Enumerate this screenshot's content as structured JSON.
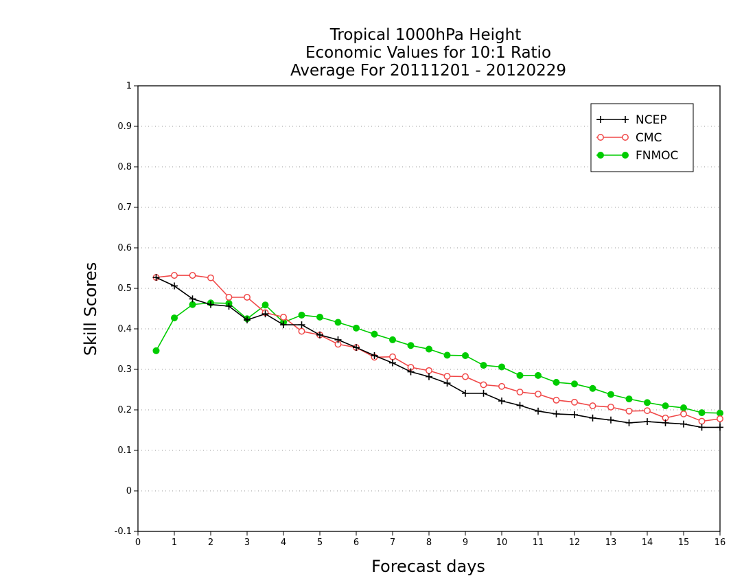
{
  "chart_data": {
    "type": "line",
    "title": [
      "Tropical 1000hPa Height",
      "Economic Values for 10:1 Ratio",
      "Average For 20111201 - 20120229"
    ],
    "xlabel": "Forecast days",
    "ylabel": "Skill Scores",
    "xlim": [
      0,
      16
    ],
    "ylim": [
      -0.1,
      1
    ],
    "xticks": [
      0,
      1,
      2,
      3,
      4,
      5,
      6,
      7,
      8,
      9,
      10,
      11,
      12,
      13,
      14,
      15,
      16
    ],
    "yticks": [
      -0.1,
      0,
      0.1,
      0.2,
      0.3,
      0.4,
      0.5,
      0.6,
      0.7,
      0.8,
      0.9,
      1
    ],
    "ytick_labels": [
      "-0.1",
      "0",
      "0.1",
      "0.2",
      "0.3",
      "0.4",
      "0.5",
      "0.6",
      "0.7",
      "0.8",
      "0.9",
      "1"
    ],
    "grid": "horizontal dotted",
    "legend_position": "top-right",
    "x": [
      0.5,
      1,
      1.5,
      2,
      2.5,
      3,
      3.5,
      4,
      4.5,
      5,
      5.5,
      6,
      6.5,
      7,
      7.5,
      8,
      8.5,
      9,
      9.5,
      10,
      10.5,
      11,
      11.5,
      12,
      12.5,
      13,
      13.5,
      14,
      14.5,
      15,
      15.5,
      16
    ],
    "series": [
      {
        "name": "NCEP",
        "color": "#000000",
        "marker": "plus",
        "values": [
          0.527,
          0.506,
          0.474,
          0.46,
          0.456,
          0.422,
          0.437,
          0.41,
          0.41,
          0.385,
          0.373,
          0.354,
          0.334,
          0.316,
          0.294,
          0.282,
          0.266,
          0.241,
          0.241,
          0.222,
          0.211,
          0.197,
          0.19,
          0.188,
          0.18,
          0.175,
          0.168,
          0.171,
          0.168,
          0.165,
          0.157,
          0.157
        ]
      },
      {
        "name": "CMC",
        "color": "#f04848",
        "marker": "open-circle",
        "values": [
          0.527,
          0.532,
          0.532,
          0.526,
          0.478,
          0.478,
          0.44,
          0.429,
          0.394,
          0.385,
          0.362,
          0.354,
          0.33,
          0.331,
          0.305,
          0.297,
          0.283,
          0.282,
          0.262,
          0.258,
          0.244,
          0.239,
          0.224,
          0.219,
          0.21,
          0.207,
          0.197,
          0.198,
          0.18,
          0.19,
          0.172,
          0.178
        ]
      },
      {
        "name": "FNMOC",
        "color": "#00cc00",
        "marker": "filled-circle",
        "values": [
          0.346,
          0.427,
          0.46,
          0.464,
          0.463,
          0.425,
          0.459,
          0.416,
          0.434,
          0.429,
          0.416,
          0.402,
          0.387,
          0.373,
          0.359,
          0.35,
          0.335,
          0.334,
          0.31,
          0.306,
          0.285,
          0.285,
          0.268,
          0.264,
          0.253,
          0.238,
          0.227,
          0.218,
          0.21,
          0.205,
          0.193,
          0.192
        ]
      }
    ]
  }
}
